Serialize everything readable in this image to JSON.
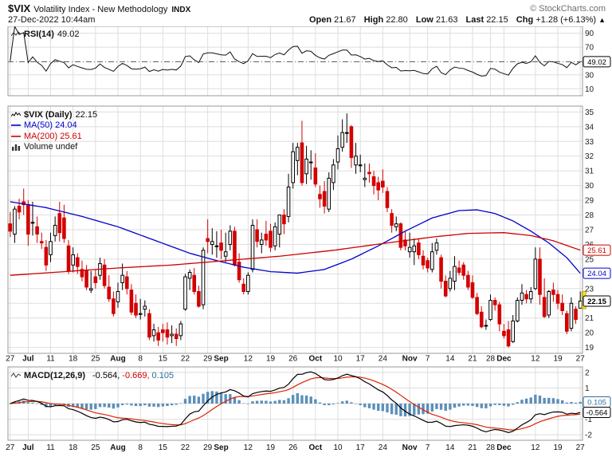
{
  "header": {
    "symbol": "$VIX",
    "title": "Volatility Index - New Methodology",
    "exchange": "INDX",
    "copyright": "© StockCharts.com",
    "datetime": "27-Dec-2022 10:44am",
    "quote": {
      "open_label": "Open",
      "open": "21.67",
      "high_label": "High",
      "high": "22.80",
      "low_label": "Low",
      "low": "21.63",
      "last_label": "Last",
      "last": "22.15",
      "chg_label": "Chg",
      "chg": "+1.28 (+6.13%)",
      "arrow": "▲"
    }
  },
  "panels": {
    "rsi": {
      "label": "RSI(14)",
      "value": "49.02"
    },
    "main": {
      "symbol_label": "$VIX (Daily)",
      "symbol_value": "22.15",
      "ma50_label": "MA(50) 24.04",
      "ma200_label": "MA(200) 25.61",
      "volume_label": "Volume undef"
    },
    "macd": {
      "label": "MACD(12,26,9)",
      "macd_value": "-0.564,",
      "signal_value": "-0.669,",
      "hist_value": "0.105"
    }
  },
  "colors": {
    "up": "#000000",
    "down": "#d40000",
    "ma50": "#0000cc",
    "ma200": "#cc0000",
    "rsi_line": "#111111",
    "macd_line": "#000000",
    "signal_line": "#dd2200",
    "histogram": "#5b8fb9",
    "grid": "#dedede",
    "panel_border": "#999999",
    "highlight": "#ffee00",
    "label": "#222222"
  },
  "chart_data": {
    "type": "candlestick",
    "title": "$VIX Volatility Index - New Methodology (Daily)",
    "last": 22.15,
    "indicators": {
      "rsi_period": 14,
      "rsi_last": 49.02,
      "macd_params": [
        12,
        26,
        9
      ],
      "macd_last": -0.564,
      "signal_last": -0.669,
      "hist_last": 0.105,
      "ma50_last": 24.04,
      "ma200_last": 25.61
    },
    "y_axis": {
      "main": [
        19,
        20,
        21,
        22,
        23,
        24,
        25,
        26,
        27,
        28,
        29,
        30,
        31,
        32,
        33,
        34,
        35
      ],
      "rsi": [
        10,
        30,
        70,
        90
      ],
      "macd": [
        -2,
        -1,
        0,
        1,
        2
      ]
    },
    "x_ticks": [
      {
        "label": "27",
        "i": 0
      },
      {
        "label": "Jul",
        "i": 4,
        "bold": true
      },
      {
        "label": "11",
        "i": 9
      },
      {
        "label": "18",
        "i": 14
      },
      {
        "label": "25",
        "i": 19
      },
      {
        "label": "Aug",
        "i": 24,
        "bold": true
      },
      {
        "label": "8",
        "i": 29
      },
      {
        "label": "15",
        "i": 34
      },
      {
        "label": "22",
        "i": 39
      },
      {
        "label": "29",
        "i": 44
      },
      {
        "label": "Sep",
        "i": 47,
        "bold": true
      },
      {
        "label": "12",
        "i": 53
      },
      {
        "label": "19",
        "i": 58
      },
      {
        "label": "26",
        "i": 63
      },
      {
        "label": "Oct",
        "i": 68,
        "bold": true
      },
      {
        "label": "10",
        "i": 73
      },
      {
        "label": "17",
        "i": 78
      },
      {
        "label": "24",
        "i": 83
      },
      {
        "label": "Nov",
        "i": 89,
        "bold": true
      },
      {
        "label": "7",
        "i": 93
      },
      {
        "label": "14",
        "i": 98
      },
      {
        "label": "21",
        "i": 103
      },
      {
        "label": "28",
        "i": 107
      },
      {
        "label": "Dec",
        "i": 110,
        "bold": true
      },
      {
        "label": "12",
        "i": 117
      },
      {
        "label": "19",
        "i": 122
      },
      {
        "label": "27",
        "i": 127
      }
    ],
    "chips": {
      "rsi": [
        {
          "text": "49.02",
          "value": 49.02,
          "color": "#000000"
        }
      ],
      "main": [
        {
          "text": "25.61",
          "value": 25.61,
          "color": "#cc0000"
        },
        {
          "text": "24.04",
          "value": 24.04,
          "color": "#0000cc"
        },
        {
          "text": "22.15",
          "value": 22.15,
          "color": "#000000",
          "bold": true
        }
      ],
      "macd": [
        {
          "text": "0.105",
          "value": 0.105,
          "color": "#2e6e9e"
        },
        {
          "text": "-0.564",
          "value": -0.564,
          "color": "#000000"
        }
      ]
    },
    "last_range": {
      "high": 22.8,
      "low": 21.63
    },
    "ma50_keypoints": [
      [
        0,
        28.9
      ],
      [
        8,
        28.5
      ],
      [
        16,
        27.9
      ],
      [
        24,
        27.2
      ],
      [
        32,
        26.3
      ],
      [
        40,
        25.4
      ],
      [
        46,
        24.9
      ],
      [
        52,
        24.45
      ],
      [
        58,
        24.15
      ],
      [
        64,
        24.05
      ],
      [
        70,
        24.3
      ],
      [
        76,
        25.0
      ],
      [
        82,
        25.9
      ],
      [
        88,
        26.9
      ],
      [
        94,
        27.8
      ],
      [
        100,
        28.3
      ],
      [
        104,
        28.35
      ],
      [
        108,
        28.1
      ],
      [
        112,
        27.6
      ],
      [
        116,
        26.9
      ],
      [
        120,
        26.1
      ],
      [
        124,
        25.1
      ],
      [
        127,
        24.04
      ]
    ],
    "ma200_keypoints": [
      [
        0,
        23.9
      ],
      [
        12,
        24.15
      ],
      [
        24,
        24.4
      ],
      [
        36,
        24.6
      ],
      [
        48,
        24.9
      ],
      [
        60,
        25.2
      ],
      [
        72,
        25.6
      ],
      [
        84,
        26.1
      ],
      [
        94,
        26.5
      ],
      [
        102,
        26.75
      ],
      [
        110,
        26.8
      ],
      [
        116,
        26.6
      ],
      [
        121,
        26.25
      ],
      [
        127,
        25.61
      ]
    ],
    "ohlc": [
      [
        27.4,
        28.2,
        26.5,
        26.9
      ],
      [
        26.7,
        28.6,
        26.1,
        28.4
      ],
      [
        28.6,
        29.1,
        27.7,
        28.2
      ],
      [
        28.9,
        29.8,
        28.0,
        28.7
      ],
      [
        28.7,
        29.0,
        25.9,
        26.7
      ],
      [
        27.5,
        28.9,
        26.6,
        27.5
      ],
      [
        27.2,
        27.9,
        26.1,
        26.7
      ],
      [
        26.2,
        26.8,
        25.7,
        26.1
      ],
      [
        25.8,
        26.3,
        24.2,
        24.6
      ],
      [
        25.3,
        26.8,
        24.8,
        26.2
      ],
      [
        26.6,
        27.9,
        26.2,
        27.3
      ],
      [
        28.1,
        28.9,
        26.2,
        26.8
      ],
      [
        27.8,
        28.7,
        26.1,
        26.4
      ],
      [
        25.9,
        26.3,
        24.0,
        24.2
      ],
      [
        24.6,
        25.8,
        24.1,
        25.3
      ],
      [
        25.1,
        25.4,
        24.0,
        24.5
      ],
      [
        24.3,
        24.9,
        23.5,
        23.8
      ],
      [
        24.2,
        24.6,
        22.9,
        23.1
      ],
      [
        22.9,
        24.2,
        22.7,
        23.0
      ],
      [
        23.8,
        24.3,
        23.0,
        23.4
      ],
      [
        23.9,
        25.1,
        23.6,
        24.7
      ],
      [
        24.6,
        25.0,
        23.0,
        23.2
      ],
      [
        23.1,
        23.9,
        22.1,
        22.3
      ],
      [
        22.3,
        22.8,
        21.1,
        21.3
      ],
      [
        22.1,
        23.4,
        21.7,
        22.8
      ],
      [
        23.4,
        24.7,
        22.9,
        23.9
      ],
      [
        23.8,
        24.2,
        22.6,
        23.0
      ],
      [
        22.9,
        23.3,
        21.2,
        21.4
      ],
      [
        22.0,
        22.6,
        21.0,
        21.2
      ],
      [
        21.3,
        22.3,
        20.9,
        21.3
      ],
      [
        21.6,
        22.2,
        21.1,
        21.8
      ],
      [
        21.3,
        21.6,
        19.5,
        19.7
      ],
      [
        19.8,
        20.6,
        19.4,
        20.2
      ],
      [
        20.0,
        20.4,
        19.1,
        19.5
      ],
      [
        20.2,
        20.6,
        19.4,
        20.0
      ],
      [
        20.2,
        20.7,
        19.2,
        19.7
      ],
      [
        19.8,
        20.5,
        19.3,
        19.9
      ],
      [
        19.9,
        20.3,
        19.1,
        19.6
      ],
      [
        19.8,
        20.8,
        19.5,
        20.6
      ],
      [
        21.6,
        24.0,
        21.5,
        23.8
      ],
      [
        23.7,
        24.3,
        22.9,
        24.1
      ],
      [
        23.9,
        24.4,
        22.6,
        22.8
      ],
      [
        22.8,
        23.2,
        21.7,
        21.8
      ],
      [
        21.9,
        25.8,
        21.6,
        25.6
      ],
      [
        26.4,
        27.7,
        25.4,
        26.2
      ],
      [
        26.0,
        27.1,
        25.3,
        26.2
      ],
      [
        25.9,
        26.9,
        25.1,
        25.9
      ],
      [
        26.1,
        27.0,
        25.0,
        25.6
      ],
      [
        25.2,
        26.8,
        24.8,
        25.5
      ],
      [
        26.0,
        27.3,
        25.6,
        26.9
      ],
      [
        26.9,
        27.2,
        24.5,
        24.6
      ],
      [
        24.8,
        25.4,
        23.4,
        23.6
      ],
      [
        23.3,
        23.7,
        22.6,
        22.8
      ],
      [
        22.8,
        24.1,
        22.6,
        23.9
      ],
      [
        24.3,
        27.7,
        24.1,
        27.3
      ],
      [
        27.0,
        27.7,
        25.8,
        26.2
      ],
      [
        26.0,
        26.8,
        25.4,
        26.3
      ],
      [
        26.7,
        27.6,
        25.9,
        26.3
      ],
      [
        26.9,
        27.4,
        25.5,
        25.8
      ],
      [
        25.9,
        27.5,
        25.6,
        27.2
      ],
      [
        26.7,
        28.0,
        25.8,
        28.0
      ],
      [
        28.0,
        28.4,
        26.7,
        27.4
      ],
      [
        27.9,
        30.8,
        27.5,
        29.9
      ],
      [
        30.2,
        32.9,
        29.8,
        32.3
      ],
      [
        31.7,
        32.9,
        30.7,
        32.6
      ],
      [
        32.9,
        34.4,
        30.0,
        30.2
      ],
      [
        30.8,
        32.7,
        30.1,
        31.8
      ],
      [
        31.6,
        32.4,
        30.4,
        31.6
      ],
      [
        31.2,
        32.2,
        29.9,
        30.1
      ],
      [
        29.4,
        30.0,
        28.5,
        29.1
      ],
      [
        29.6,
        30.3,
        28.1,
        28.6
      ],
      [
        28.4,
        30.9,
        28.2,
        30.5
      ],
      [
        30.2,
        31.8,
        29.7,
        31.4
      ],
      [
        31.6,
        33.4,
        31.1,
        32.5
      ],
      [
        32.6,
        34.5,
        32.3,
        33.6
      ],
      [
        33.6,
        34.9,
        32.9,
        33.6
      ],
      [
        34.0,
        34.1,
        31.2,
        31.9
      ],
      [
        31.4,
        32.9,
        30.8,
        32.0
      ],
      [
        31.4,
        32.1,
        30.9,
        31.4
      ],
      [
        30.4,
        31.5,
        29.9,
        30.5
      ],
      [
        30.9,
        31.5,
        30.2,
        30.8
      ],
      [
        30.6,
        31.0,
        29.4,
        30.0
      ],
      [
        30.2,
        30.6,
        29.0,
        29.7
      ],
      [
        30.3,
        31.1,
        29.5,
        29.9
      ],
      [
        29.6,
        29.9,
        28.2,
        28.5
      ],
      [
        28.1,
        28.4,
        26.8,
        27.3
      ],
      [
        27.2,
        27.9,
        26.9,
        27.4
      ],
      [
        27.4,
        27.5,
        25.6,
        25.8
      ],
      [
        26.3,
        26.9,
        25.6,
        25.9
      ],
      [
        25.5,
        26.8,
        25.1,
        25.8
      ],
      [
        25.5,
        26.4,
        24.6,
        25.9
      ],
      [
        26.1,
        26.4,
        25.0,
        25.3
      ],
      [
        25.2,
        25.6,
        24.3,
        24.6
      ],
      [
        24.9,
        25.1,
        24.1,
        24.4
      ],
      [
        24.3,
        26.1,
        24.1,
        25.5
      ],
      [
        25.6,
        26.4,
        25.3,
        26.1
      ],
      [
        25.1,
        25.3,
        23.0,
        23.5
      ],
      [
        23.5,
        23.9,
        22.4,
        22.5
      ],
      [
        23.0,
        24.2,
        22.8,
        23.7
      ],
      [
        23.5,
        25.2,
        22.9,
        24.5
      ],
      [
        24.4,
        24.9,
        23.9,
        24.1
      ],
      [
        24.6,
        24.8,
        23.6,
        23.9
      ],
      [
        23.9,
        24.2,
        22.9,
        23.1
      ],
      [
        23.4,
        23.9,
        22.3,
        22.4
      ],
      [
        22.4,
        22.7,
        21.2,
        21.3
      ],
      [
        21.4,
        21.8,
        20.3,
        20.4
      ],
      [
        20.5,
        20.9,
        20.2,
        20.5
      ],
      [
        20.9,
        22.6,
        20.8,
        22.2
      ],
      [
        22.2,
        22.4,
        21.5,
        21.9
      ],
      [
        21.9,
        22.1,
        20.1,
        20.6
      ],
      [
        20.1,
        20.6,
        19.6,
        19.8
      ],
      [
        20.2,
        20.8,
        19.0,
        19.1
      ],
      [
        19.4,
        21.2,
        19.3,
        20.8
      ],
      [
        20.8,
        22.4,
        20.7,
        22.2
      ],
      [
        22.2,
        23.3,
        21.9,
        22.7
      ],
      [
        22.6,
        22.9,
        22.0,
        22.3
      ],
      [
        22.3,
        23.1,
        22.0,
        22.8
      ],
      [
        23.0,
        25.8,
        22.9,
        25.0
      ],
      [
        25.0,
        25.8,
        21.9,
        22.6
      ],
      [
        22.4,
        23.7,
        21.0,
        21.1
      ],
      [
        21.2,
        22.9,
        21.0,
        22.8
      ],
      [
        22.9,
        23.4,
        22.1,
        22.6
      ],
      [
        22.6,
        22.9,
        21.6,
        22.0
      ],
      [
        22.0,
        22.6,
        21.2,
        21.5
      ],
      [
        21.3,
        21.5,
        19.9,
        20.1
      ],
      [
        20.3,
        22.4,
        20.1,
        22.0
      ],
      [
        21.6,
        21.8,
        20.6,
        20.9
      ],
      [
        21.67,
        22.8,
        21.63,
        22.15
      ]
    ]
  }
}
